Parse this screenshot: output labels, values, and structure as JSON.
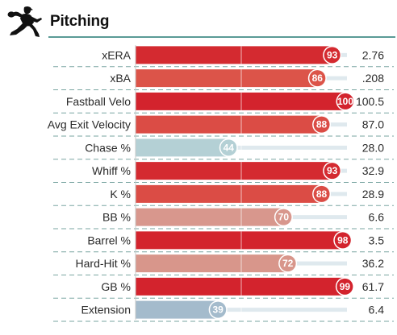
{
  "header": {
    "title": "Pitching",
    "icon": "pitcher-icon"
  },
  "colors": {
    "elite": "#d3232d",
    "great": "#de5048",
    "above_avg": "#d8978d",
    "below_avg": "#b4d0d5",
    "poor": "#a4bbcc",
    "track": "#dfe9ee",
    "rule": "#5a9a96",
    "dashed": "#7aa6a2"
  },
  "chart_data": {
    "type": "bar",
    "title": "Pitching",
    "xlim": [
      0,
      100
    ],
    "value_kind": "percentile",
    "rows": [
      {
        "label": "xERA",
        "percentile": 93,
        "value": "2.76",
        "color": "#d42a30"
      },
      {
        "label": "xBA",
        "percentile": 86,
        "value": ".208",
        "color": "#dc5449"
      },
      {
        "label": "Fastball Velo",
        "percentile": 100,
        "value": "100.5",
        "color": "#d3232d"
      },
      {
        "label": "Avg Exit Velocity",
        "percentile": 88,
        "value": "87.0",
        "color": "#db4c45"
      },
      {
        "label": "Chase %",
        "percentile": 44,
        "value": "28.0",
        "color": "#b4d0d5"
      },
      {
        "label": "Whiff %",
        "percentile": 93,
        "value": "32.9",
        "color": "#d42a30"
      },
      {
        "label": "K %",
        "percentile": 88,
        "value": "28.9",
        "color": "#db4c45"
      },
      {
        "label": "BB %",
        "percentile": 70,
        "value": "6.6",
        "color": "#d8978d"
      },
      {
        "label": "Barrel %",
        "percentile": 98,
        "value": "3.5",
        "color": "#d3232d"
      },
      {
        "label": "Hard-Hit %",
        "percentile": 72,
        "value": "36.2",
        "color": "#d8968b"
      },
      {
        "label": "GB %",
        "percentile": 99,
        "value": "61.7",
        "color": "#d3232d"
      },
      {
        "label": "Extension",
        "percentile": 39,
        "value": "6.4",
        "color": "#a4bbcc"
      }
    ]
  }
}
